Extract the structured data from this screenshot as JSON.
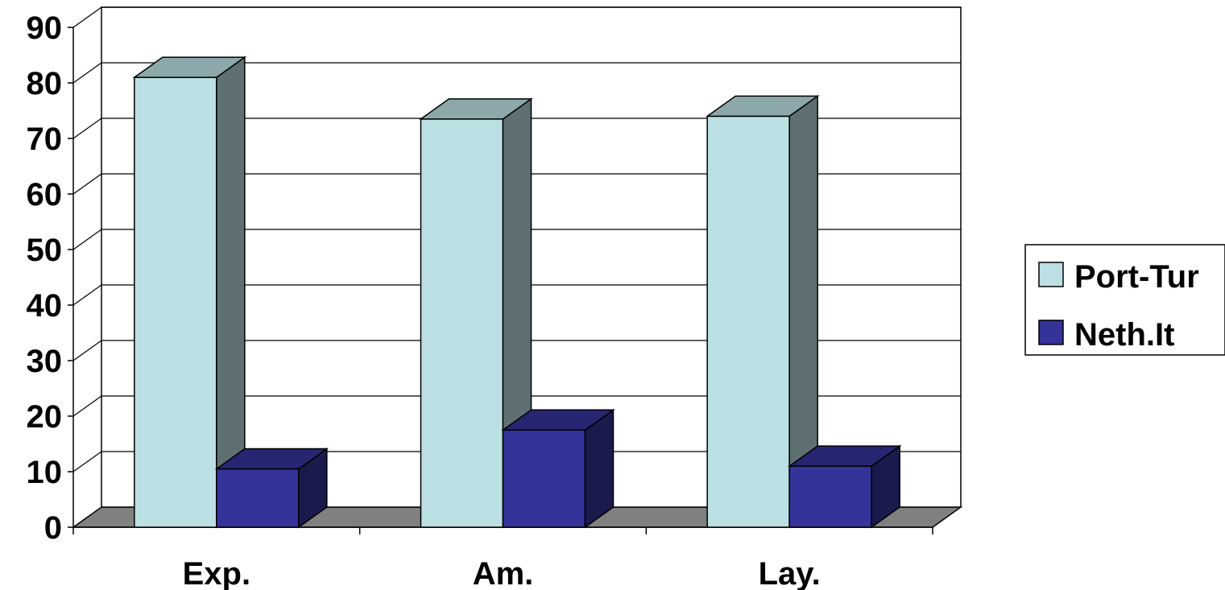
{
  "chart_data": {
    "type": "bar",
    "view": "3d-clustered-column",
    "categories": [
      "Exp.",
      "Am.",
      "Lay."
    ],
    "series": [
      {
        "name": "Port-Tur",
        "values": [
          81,
          73.5,
          74
        ],
        "color": "#BBE0E3"
      },
      {
        "name": "Neth.It",
        "values": [
          10.5,
          17.5,
          11
        ],
        "color": "#333399"
      }
    ],
    "ylim": [
      0,
      90
    ],
    "yticks": [
      0,
      10,
      20,
      30,
      40,
      50,
      60,
      70,
      80,
      90
    ],
    "grid": true,
    "legend": "right",
    "title": "",
    "xlabel": "",
    "ylabel": ""
  }
}
